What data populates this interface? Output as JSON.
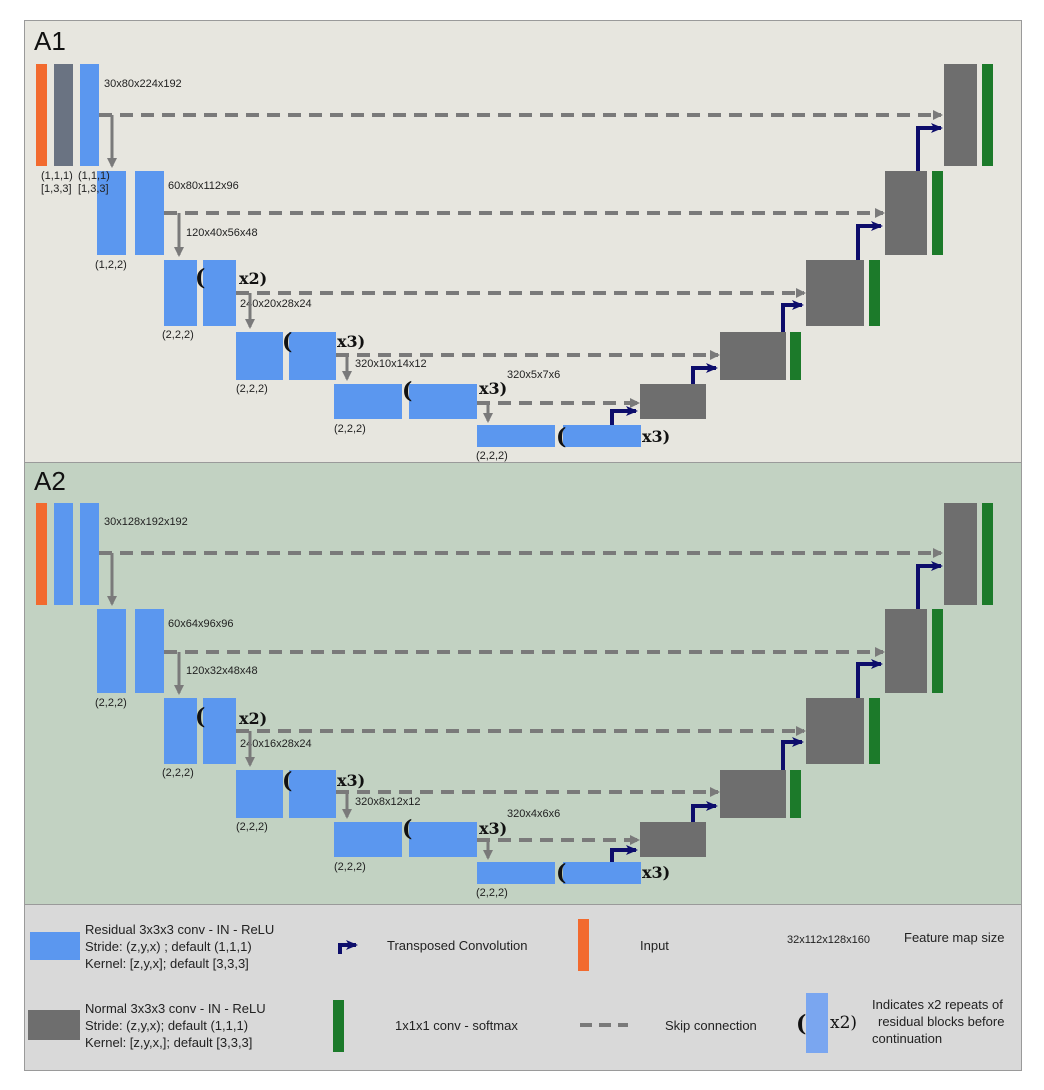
{
  "panels": {
    "a1": {
      "title": "A1",
      "sizes": [
        "30x80x224x192",
        "60x80x112x96",
        "120x40x56x48",
        "240x20x28x24",
        "320x10x14x12",
        "320x5x7x6"
      ],
      "strides": [
        "(1,1,1)",
        "(1,1,1)",
        "(1,2,2)",
        "(2,2,2)",
        "(2,2,2)",
        "(2,2,2)",
        "(2,2,2)"
      ],
      "kernels": [
        "[1,3,3]",
        "[1,3,3]"
      ],
      "repeats": [
        "x2)",
        "x3)",
        "x3)",
        "x3)"
      ]
    },
    "a2": {
      "title": "A2",
      "sizes": [
        "30x128x192x192",
        "60x64x96x96",
        "120x32x48x48",
        "240x16x28x24",
        "320x8x12x12",
        "320x4x6x6"
      ],
      "strides": [
        "(2,2,2)",
        "(2,2,2)",
        "(2,2,2)",
        "(2,2,2)",
        "(2,2,2)"
      ],
      "repeats": [
        "x2)",
        "x3)",
        "x3)",
        "x3)"
      ]
    }
  },
  "paren_open": "(",
  "legend": {
    "residual": [
      "Residual 3x3x3 conv - IN - ReLU",
      "Stride: (z,y,x) ; default (1,1,1)",
      "Kernel: [z,y,x]; default [3,3,3]"
    ],
    "normal": [
      "Normal 3x3x3 conv - IN - ReLU",
      "Stride: (z,y,x); default (1,1,1)",
      "Kernel: [z,y,x,]; default [3,3,3]"
    ],
    "transposed": "Transposed Convolution",
    "softmax": "1x1x1 conv - softmax",
    "input": "Input",
    "skip": "Skip connection",
    "fmap_example": "32x112x128x160",
    "fmap_label": "Feature map size",
    "repeat_paren": "(",
    "repeat_x": "x2)",
    "repeat_desc": [
      "Indicates x2 repeats of",
      "residual blocks before",
      "continuation"
    ]
  },
  "colors": {
    "residual": "#5b97ef",
    "normal": "#6e6e6e",
    "softmax": "#1c7a2a",
    "input": "#f26a2e",
    "transposed": "#0d0d6b",
    "skip": "#7a7a7a",
    "a1_background": "#e7e6df",
    "a2_background": "#c2d2c2",
    "legend_background": "#d9d9d9"
  }
}
